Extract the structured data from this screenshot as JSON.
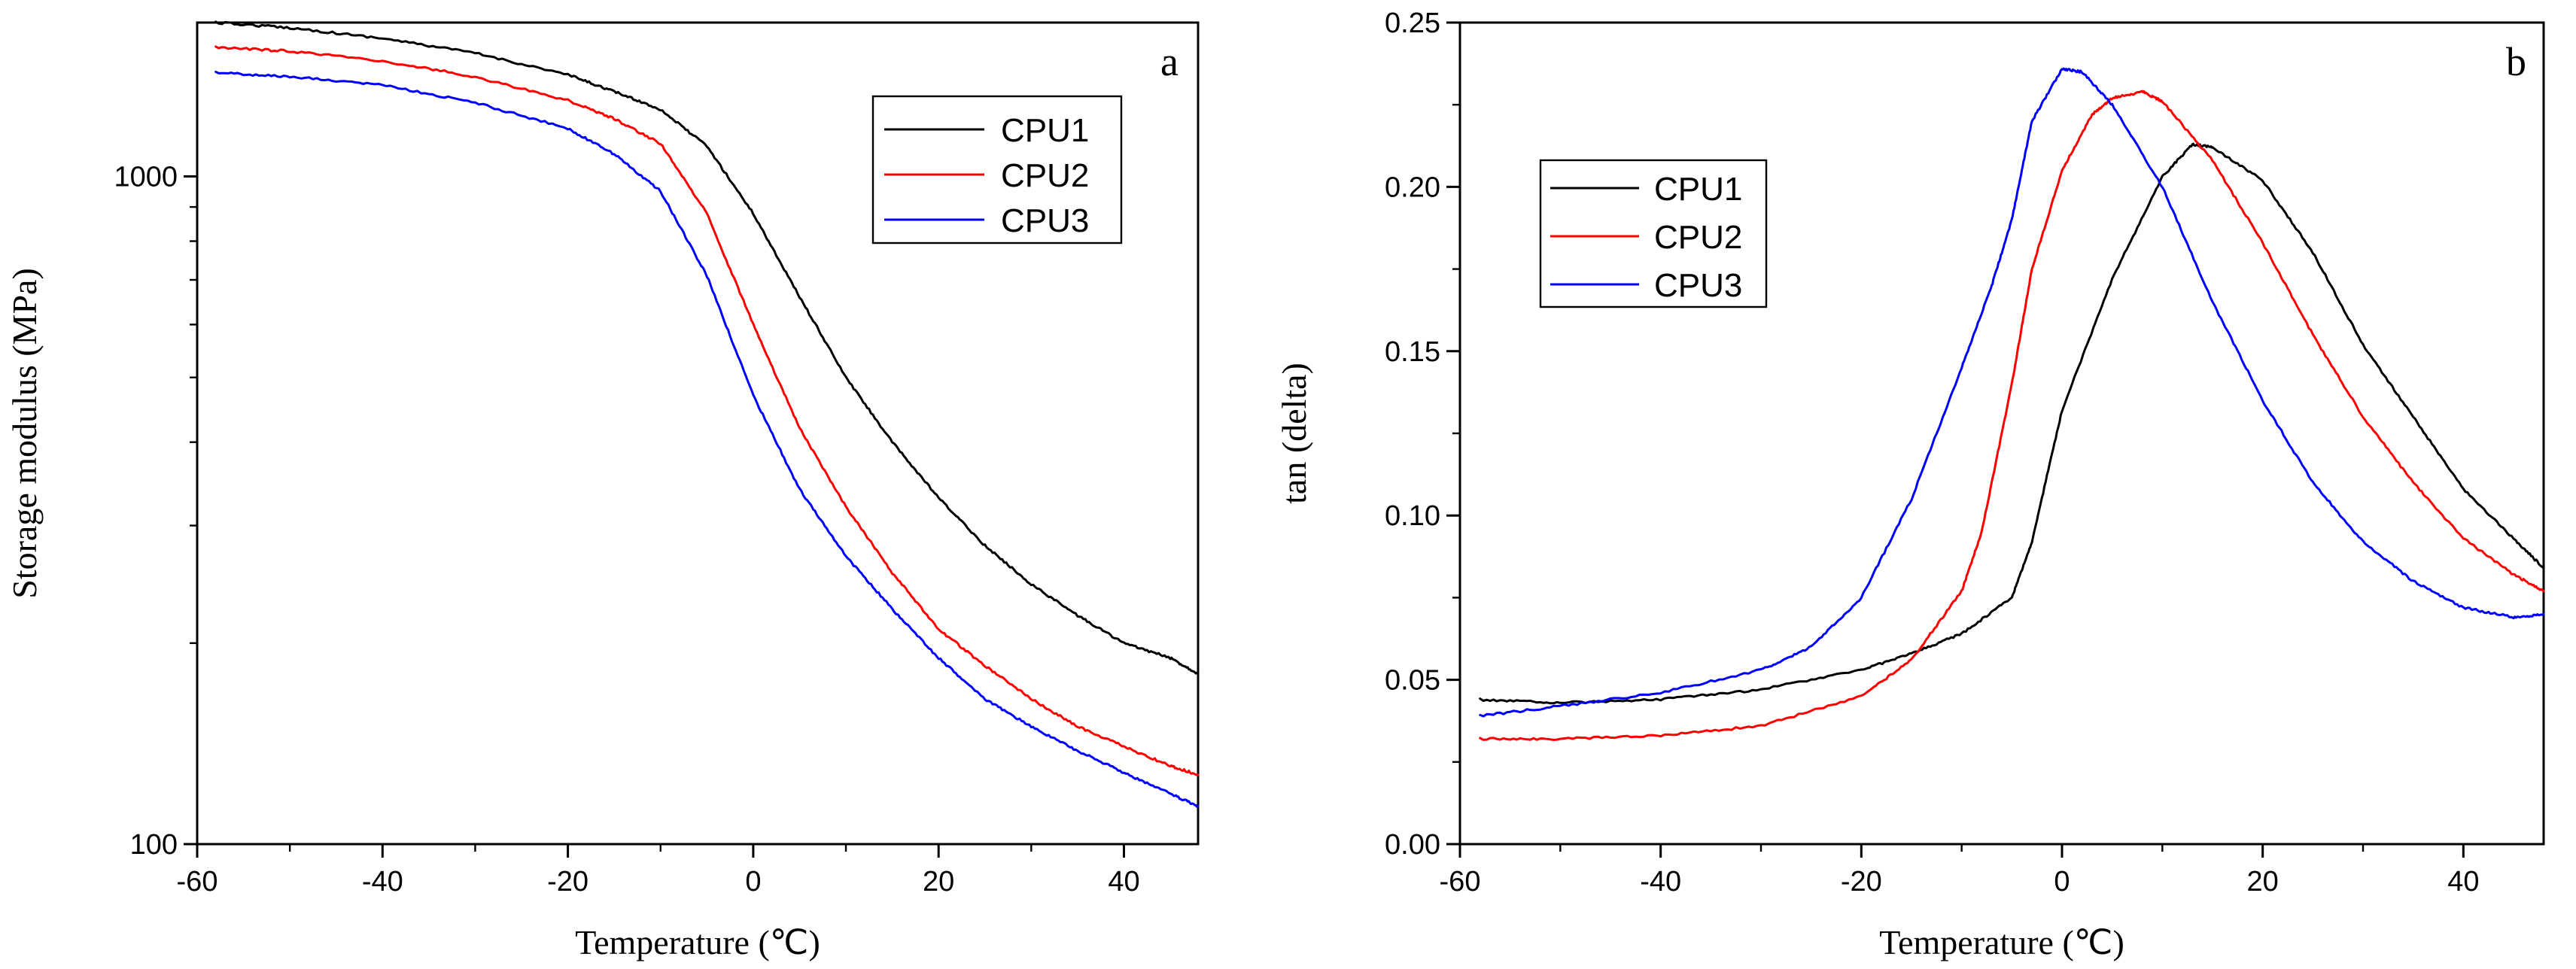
{
  "chart_data": [
    {
      "type": "line",
      "panel_label": "a",
      "xlabel": "Temperature (℃)",
      "ylabel": "Storage modulus (MPa)",
      "xlim": [
        -60,
        48
      ],
      "ylim": [
        100,
        1700
      ],
      "yscale": "log",
      "x_ticks": [
        -60,
        -40,
        -20,
        0,
        20,
        40
      ],
      "y_ticks": [
        100,
        1000
      ],
      "legend_position": "top-right",
      "series": [
        {
          "name": "CPU1",
          "color": "#000000",
          "x": [
            -58,
            -50,
            -40,
            -30,
            -20,
            -15,
            -10,
            -5,
            0,
            5,
            10,
            15,
            20,
            25,
            30,
            35,
            40,
            45,
            48
          ],
          "y": [
            1700,
            1670,
            1610,
            1530,
            1420,
            1340,
            1260,
            1110,
            880,
            660,
            500,
            400,
            330,
            280,
            245,
            220,
            200,
            190,
            180
          ]
        },
        {
          "name": "CPU2",
          "color": "#ff0000",
          "x": [
            -58,
            -50,
            -40,
            -30,
            -20,
            -15,
            -10,
            -5,
            0,
            5,
            10,
            15,
            20,
            25,
            30,
            35,
            40,
            45,
            48
          ],
          "y": [
            1560,
            1540,
            1490,
            1410,
            1300,
            1220,
            1120,
            880,
            600,
            420,
            320,
            255,
            210,
            185,
            165,
            150,
            140,
            131,
            127
          ]
        },
        {
          "name": "CPU3",
          "color": "#0000ff",
          "x": [
            -58,
            -50,
            -40,
            -30,
            -20,
            -15,
            -10,
            -5,
            0,
            5,
            10,
            15,
            20,
            25,
            30,
            35,
            40,
            45,
            48
          ],
          "y": [
            1430,
            1410,
            1370,
            1290,
            1180,
            1080,
            950,
            710,
            470,
            340,
            270,
            225,
            190,
            165,
            150,
            138,
            128,
            119,
            114
          ]
        }
      ]
    },
    {
      "type": "line",
      "panel_label": "b",
      "xlabel": "Temperature (℃)",
      "ylabel": "tan (delta)",
      "xlim": [
        -60,
        48
      ],
      "ylim": [
        0.0,
        0.25
      ],
      "x_ticks": [
        -60,
        -40,
        -20,
        0,
        20,
        40
      ],
      "y_ticks": [
        "0.00",
        "0.05",
        "0.10",
        "0.15",
        "0.20",
        "0.25"
      ],
      "legend_position": "top-left",
      "series": [
        {
          "name": "CPU1",
          "color": "#000000",
          "x": [
            -58,
            -50,
            -40,
            -30,
            -20,
            -15,
            -10,
            -5,
            -3,
            0,
            5,
            10,
            13,
            15,
            20,
            25,
            30,
            35,
            40,
            45,
            48
          ],
          "y": [
            0.044,
            0.043,
            0.044,
            0.047,
            0.053,
            0.058,
            0.064,
            0.075,
            0.092,
            0.132,
            0.172,
            0.203,
            0.213,
            0.212,
            0.202,
            0.18,
            0.152,
            0.13,
            0.108,
            0.093,
            0.084
          ]
        },
        {
          "name": "CPU2",
          "color": "#ff0000",
          "x": [
            -58,
            -50,
            -40,
            -30,
            -20,
            -15,
            -10,
            -8,
            -5,
            -3,
            0,
            3,
            5,
            8,
            10,
            15,
            20,
            25,
            30,
            35,
            40,
            45,
            48
          ],
          "y": [
            0.032,
            0.032,
            0.033,
            0.036,
            0.045,
            0.056,
            0.077,
            0.095,
            0.14,
            0.175,
            0.205,
            0.222,
            0.227,
            0.229,
            0.226,
            0.208,
            0.183,
            0.155,
            0.13,
            0.11,
            0.093,
            0.082,
            0.077
          ]
        },
        {
          "name": "CPU3",
          "color": "#0000ff",
          "x": [
            -58,
            -50,
            -40,
            -30,
            -25,
            -20,
            -15,
            -10,
            -7,
            -5,
            -3,
            0,
            2,
            5,
            10,
            15,
            20,
            25,
            30,
            35,
            40,
            45,
            48
          ],
          "y": [
            0.039,
            0.042,
            0.046,
            0.053,
            0.06,
            0.075,
            0.105,
            0.145,
            0.17,
            0.19,
            0.22,
            0.236,
            0.235,
            0.225,
            0.2,
            0.165,
            0.135,
            0.11,
            0.092,
            0.08,
            0.072,
            0.069,
            0.07
          ]
        }
      ]
    }
  ]
}
